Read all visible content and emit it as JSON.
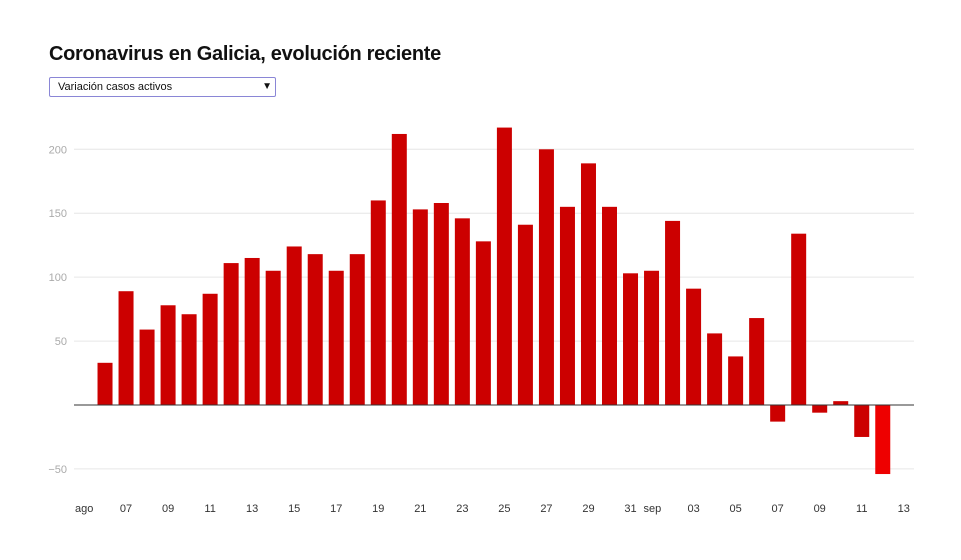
{
  "title": "Coronavirus en Galicia, evolución reciente",
  "selector": {
    "selected": "Variación casos activos",
    "arrow_icon": "▼"
  },
  "colors": {
    "bar": "#cc0000",
    "bar_highlight": "#ee0000",
    "grid": "#e6e6e6",
    "zero_line": "#333333"
  },
  "chart_data": {
    "type": "bar",
    "title": "Coronavirus en Galicia, evolución reciente",
    "series_name": "Variación casos activos",
    "xlabel": "",
    "ylabel": "",
    "ylim": [
      -75,
      225
    ],
    "y_ticks": [
      -50,
      50,
      100,
      150,
      200
    ],
    "y_tick_labels": [
      "−50",
      "50",
      "100",
      "150",
      "200"
    ],
    "grid": true,
    "dates": [
      "2020-08-05",
      "2020-08-06",
      "2020-08-07",
      "2020-08-08",
      "2020-08-09",
      "2020-08-10",
      "2020-08-11",
      "2020-08-12",
      "2020-08-13",
      "2020-08-14",
      "2020-08-15",
      "2020-08-16",
      "2020-08-17",
      "2020-08-18",
      "2020-08-19",
      "2020-08-20",
      "2020-08-21",
      "2020-08-22",
      "2020-08-23",
      "2020-08-24",
      "2020-08-25",
      "2020-08-26",
      "2020-08-27",
      "2020-08-28",
      "2020-08-29",
      "2020-08-30",
      "2020-08-31",
      "2020-09-01",
      "2020-09-02",
      "2020-09-03",
      "2020-09-04",
      "2020-09-05",
      "2020-09-06",
      "2020-09-07",
      "2020-09-08",
      "2020-09-09",
      "2020-09-10",
      "2020-09-11",
      "2020-09-12",
      "2020-09-13"
    ],
    "values": [
      0,
      33,
      89,
      59,
      78,
      71,
      87,
      111,
      115,
      105,
      124,
      118,
      105,
      118,
      160,
      212,
      153,
      158,
      146,
      128,
      217,
      141,
      200,
      155,
      189,
      155,
      103,
      105,
      144,
      91,
      56,
      38,
      68,
      -13,
      134,
      -6,
      3,
      -25,
      -54,
      0
    ],
    "highlight_index": 38,
    "x_tick_labels": [
      {
        "index": 0,
        "label": "ago"
      },
      {
        "index": 2,
        "label": "07"
      },
      {
        "index": 4,
        "label": "09"
      },
      {
        "index": 6,
        "label": "11"
      },
      {
        "index": 8,
        "label": "13"
      },
      {
        "index": 10,
        "label": "15"
      },
      {
        "index": 12,
        "label": "17"
      },
      {
        "index": 14,
        "label": "19"
      },
      {
        "index": 16,
        "label": "21"
      },
      {
        "index": 18,
        "label": "23"
      },
      {
        "index": 20,
        "label": "25"
      },
      {
        "index": 22,
        "label": "27"
      },
      {
        "index": 24,
        "label": "29"
      },
      {
        "index": 26,
        "label": "31"
      },
      {
        "index": 27,
        "label": "sep"
      },
      {
        "index": 29,
        "label": "03"
      },
      {
        "index": 31,
        "label": "05"
      },
      {
        "index": 33,
        "label": "07"
      },
      {
        "index": 35,
        "label": "09"
      },
      {
        "index": 37,
        "label": "11"
      },
      {
        "index": 39,
        "label": "13"
      }
    ]
  }
}
